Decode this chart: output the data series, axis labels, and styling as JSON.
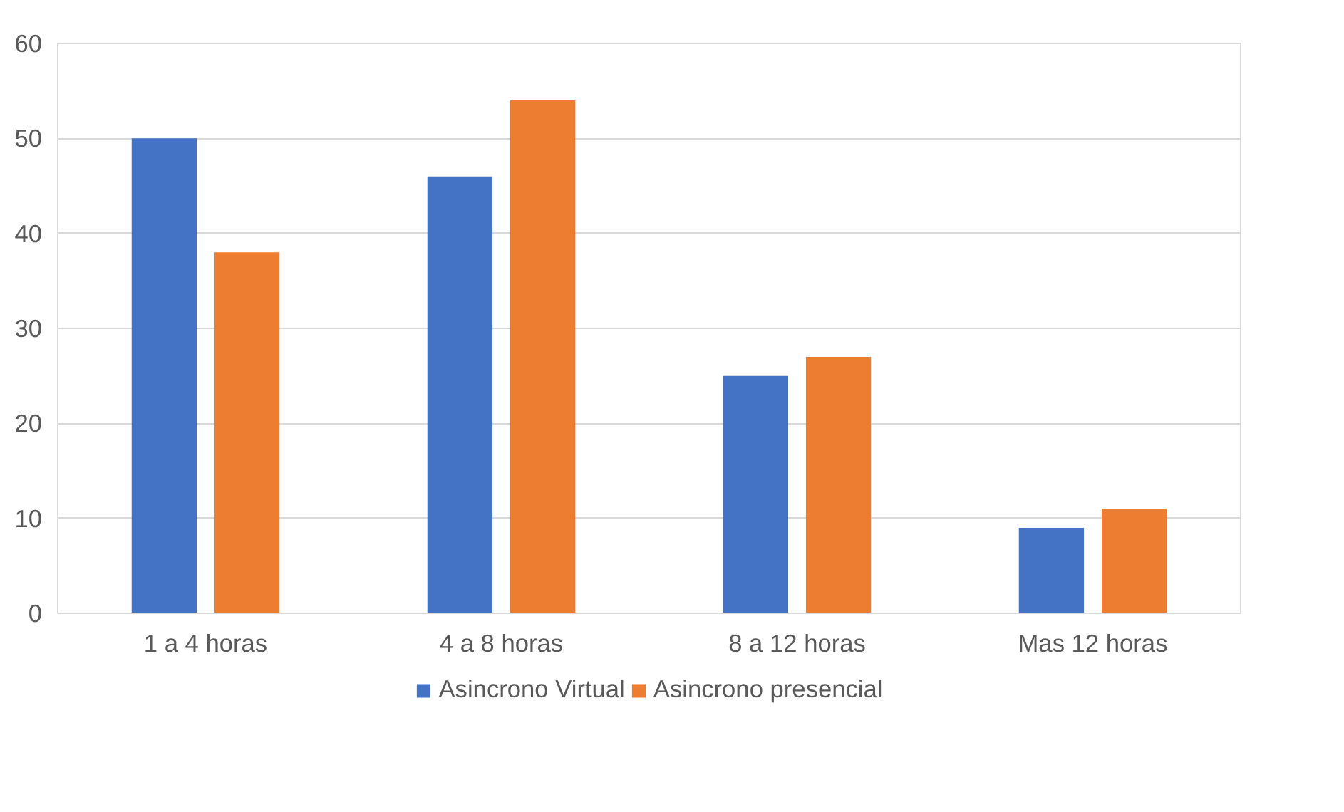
{
  "chart_data": {
    "type": "bar",
    "categories": [
      "1 a 4 horas",
      "4 a 8 horas",
      "8 a 12 horas",
      "Mas 12 horas"
    ],
    "series": [
      {
        "name": "Asincrono Virtual",
        "color": "#4472c4",
        "values": [
          50,
          46,
          25,
          9
        ]
      },
      {
        "name": "Asincrono presencial",
        "color": "#ed7d31",
        "values": [
          38,
          54,
          27,
          11
        ]
      }
    ],
    "ylim": [
      0,
      60
    ],
    "yticks": [
      0,
      10,
      20,
      30,
      40,
      50,
      60
    ],
    "grid": "y",
    "legend": "bottom"
  }
}
